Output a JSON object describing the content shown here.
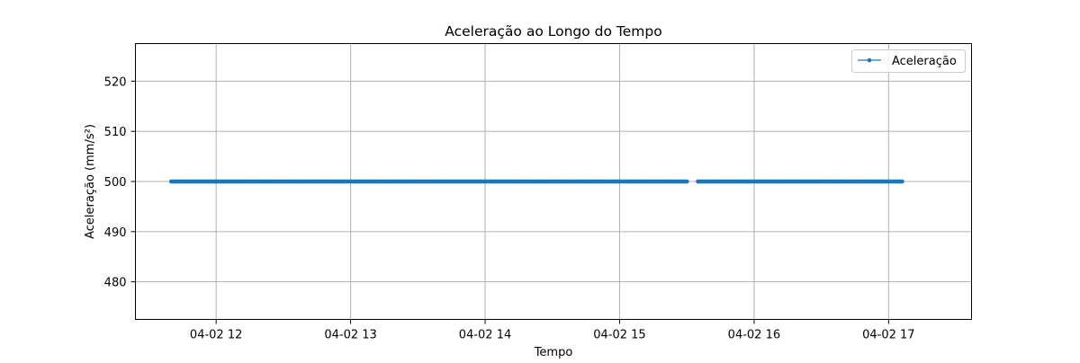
{
  "chart_data": {
    "type": "line",
    "title": "Aceleração ao Longo do Tempo",
    "xlabel": "Tempo",
    "ylabel": "Aceleração (mm/s²)",
    "x_axis_kind": "time",
    "xlim": [
      "04-02 11:24",
      "04-02 17:37"
    ],
    "ylim": [
      472.5,
      527.5
    ],
    "x_ticks": [
      {
        "value": "04-02 12:00",
        "label": "04-02 12"
      },
      {
        "value": "04-02 13:00",
        "label": "04-02 13"
      },
      {
        "value": "04-02 14:00",
        "label": "04-02 14"
      },
      {
        "value": "04-02 15:00",
        "label": "04-02 15"
      },
      {
        "value": "04-02 16:00",
        "label": "04-02 16"
      },
      {
        "value": "04-02 17:00",
        "label": "04-02 17"
      }
    ],
    "y_ticks": [
      480,
      490,
      500,
      510,
      520
    ],
    "grid": true,
    "legend_position": "top-right",
    "series": [
      {
        "name": "Aceleração",
        "color": "#1f77b4",
        "marker": "circle",
        "constant_value": 500,
        "time_start": "04-02 11:40",
        "time_end": "04-02 17:06",
        "gap": {
          "start": "04-02 15:30",
          "end": "04-02 15:35"
        }
      }
    ]
  }
}
